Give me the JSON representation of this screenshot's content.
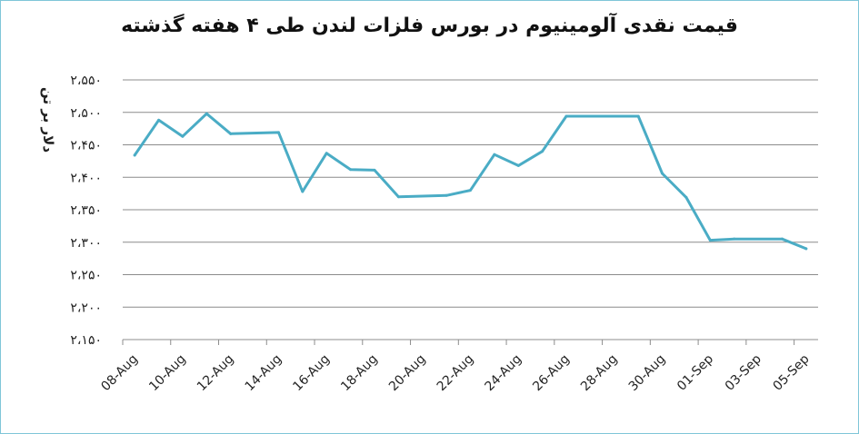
{
  "chart_data": {
    "type": "line",
    "title": "قیمت نقدی آلومینیوم در بورس فلزات لندن طی ۴ هفته گذشته",
    "ylabel": "دلار بر تن",
    "xlabel": "",
    "ylim": [
      2150,
      2550
    ],
    "yticks": [
      2150,
      2200,
      2250,
      2300,
      2350,
      2400,
      2450,
      2500,
      2550
    ],
    "ytick_labels": [
      "۲،۱۵۰",
      "۲،۲۰۰",
      "۲،۲۵۰",
      "۲،۳۰۰",
      "۲،۳۵۰",
      "۲،۴۰۰",
      "۲،۴۵۰",
      "۲،۵۰۰",
      "۲،۵۵۰"
    ],
    "x_tick_labels": [
      "08-Aug",
      "10-Aug",
      "12-Aug",
      "14-Aug",
      "16-Aug",
      "18-Aug",
      "20-Aug",
      "22-Aug",
      "24-Aug",
      "26-Aug",
      "28-Aug",
      "30-Aug",
      "01-Sep",
      "03-Sep",
      "05-Sep"
    ],
    "grid": true,
    "color": "#4aacc5",
    "series": [
      {
        "x": [
          "08-Aug",
          "09-Aug",
          "10-Aug",
          "11-Aug",
          "12-Aug",
          "14-Aug",
          "15-Aug",
          "16-Aug",
          "17-Aug",
          "18-Aug",
          "19-Aug",
          "21-Aug",
          "22-Aug",
          "23-Aug",
          "24-Aug",
          "25-Aug",
          "26-Aug",
          "29-Aug",
          "30-Aug",
          "31-Aug",
          "01-Sep",
          "02-Sep",
          "04-Sep",
          "05-Sep"
        ],
        "values": [
          2434,
          2488,
          2463,
          2498,
          2467,
          2469,
          2378,
          2437,
          2412,
          2411,
          2370,
          2372,
          2380,
          2435,
          2418,
          2440,
          2494,
          2494,
          2406,
          2369,
          2303,
          2305,
          2305,
          2290
        ]
      }
    ]
  }
}
